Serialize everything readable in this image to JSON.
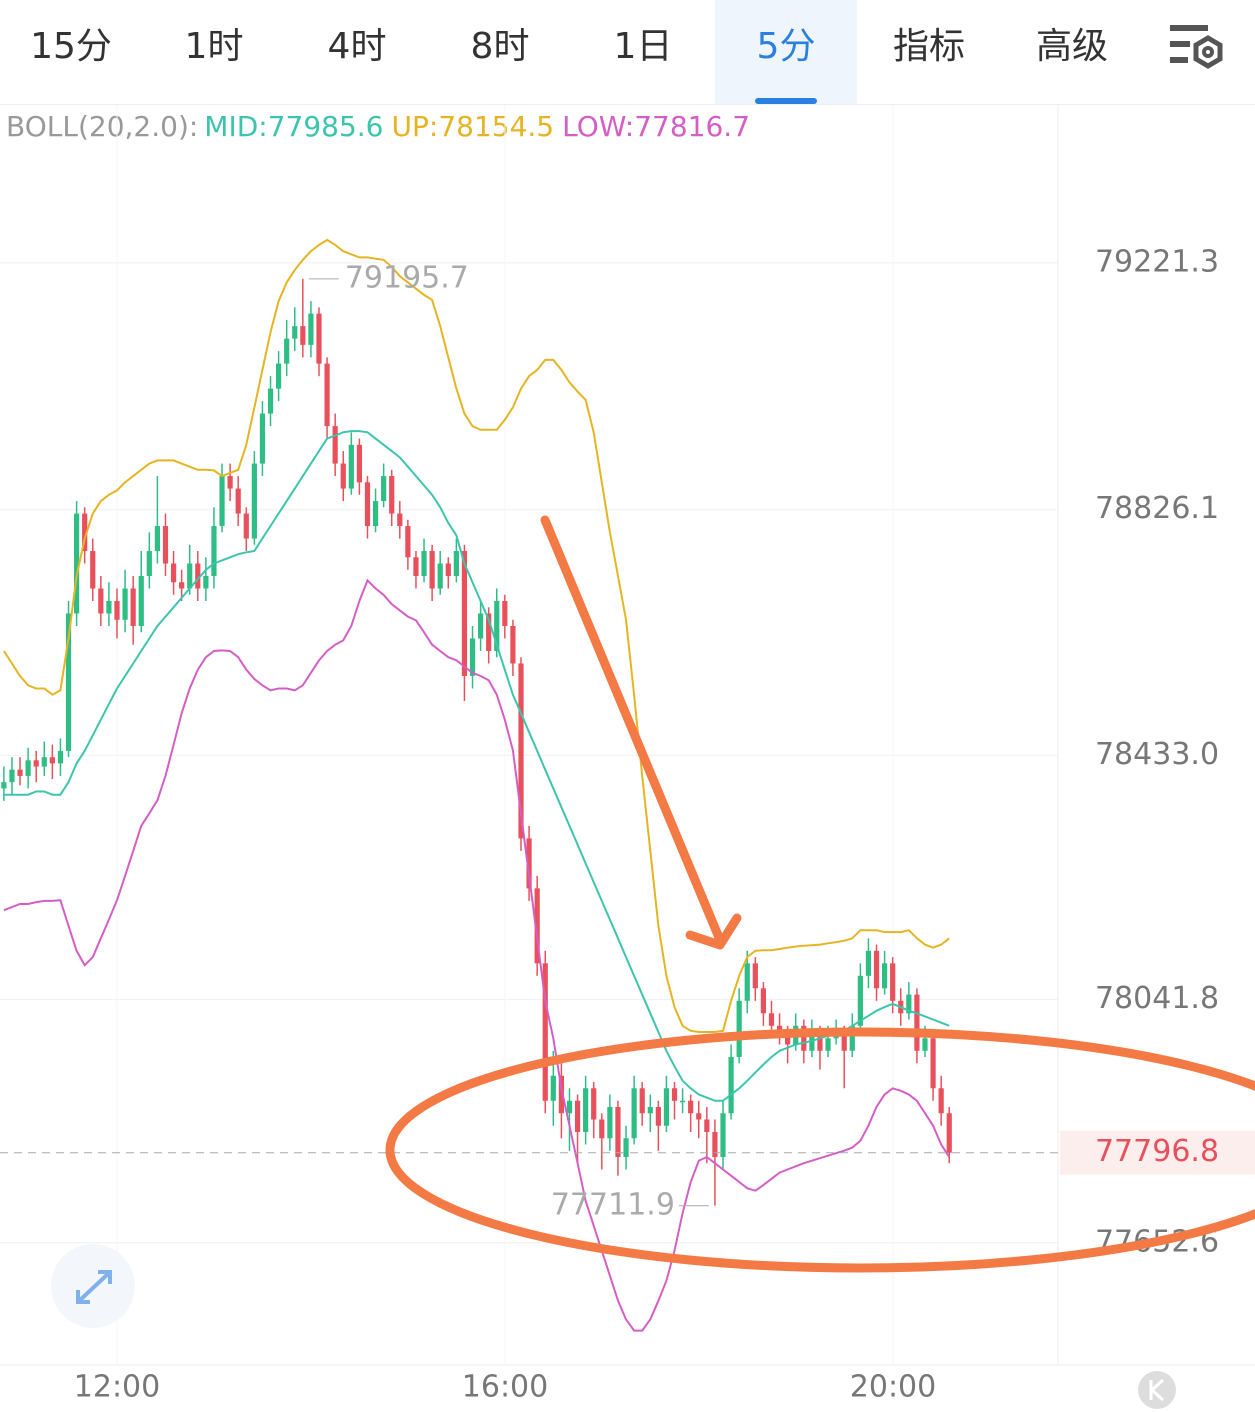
{
  "tabs": [
    "15分",
    "1时",
    "4时",
    "8时",
    "1日",
    "5分",
    "指标",
    "高级"
  ],
  "chart_data": {
    "type": "candlestick",
    "legend": [
      "BOLL(20,2.0):",
      "MID:77985.6",
      "UP:78154.5",
      "LOW:77816.7"
    ],
    "ylim": [
      77457,
      79474
    ],
    "yticks": [
      79221.3,
      78826.1,
      {
        "value": 78433,
        "label": "78433.0"
      },
      78041.8,
      77652.6
    ],
    "xtick_labels": [
      "12:00",
      "16:00",
      "20:00"
    ],
    "grid": true,
    "up_color": "#2ebd85",
    "down_color": "#e8505b",
    "high_label": 79195.7,
    "low_label": 77711.9,
    "last_price": 77796.8,
    "candles": [
      [
        78380,
        78415,
        78360,
        78390
      ],
      [
        78390,
        78430,
        78370,
        78410
      ],
      [
        78410,
        78430,
        78385,
        78400
      ],
      [
        78400,
        78445,
        78380,
        78425
      ],
      [
        78425,
        78440,
        78390,
        78415
      ],
      [
        78415,
        78455,
        78400,
        78430
      ],
      [
        78430,
        78450,
        78395,
        78420
      ],
      [
        78420,
        78460,
        78400,
        78440
      ],
      [
        78440,
        78680,
        78430,
        78660
      ],
      [
        78660,
        78840,
        78640,
        78820
      ],
      [
        78820,
        78830,
        78740,
        78760
      ],
      [
        78760,
        78780,
        78680,
        78700
      ],
      [
        78700,
        78720,
        78640,
        78660
      ],
      [
        78660,
        78710,
        78640,
        78680
      ],
      [
        78680,
        78700,
        78620,
        78650
      ],
      [
        78650,
        78730,
        78630,
        78700
      ],
      [
        78700,
        78720,
        78610,
        78640
      ],
      [
        78640,
        78760,
        78630,
        78720
      ],
      [
        78720,
        78790,
        78700,
        78760
      ],
      [
        78760,
        78880,
        78740,
        78800
      ],
      [
        78800,
        78820,
        78720,
        78740
      ],
      [
        78740,
        78760,
        78690,
        78710
      ],
      [
        78710,
        78730,
        78680,
        78700
      ],
      [
        78700,
        78770,
        78690,
        78740
      ],
      [
        78740,
        78760,
        78680,
        78700
      ],
      [
        78700,
        78750,
        78680,
        78720
      ],
      [
        78720,
        78830,
        78700,
        78800
      ],
      [
        78800,
        78900,
        78790,
        78880
      ],
      [
        78880,
        78900,
        78840,
        78860
      ],
      [
        78860,
        78880,
        78800,
        78820
      ],
      [
        78820,
        78830,
        78760,
        78780
      ],
      [
        78780,
        78920,
        78770,
        78900
      ],
      [
        78900,
        79000,
        78880,
        78980
      ],
      [
        78980,
        79040,
        78960,
        79020
      ],
      [
        79020,
        79080,
        79000,
        79060
      ],
      [
        79060,
        79130,
        79040,
        79100
      ],
      [
        79100,
        79150,
        79080,
        79120
      ],
      [
        79120,
        79195.7,
        79070,
        79090
      ],
      [
        79090,
        79160,
        79070,
        79140
      ],
      [
        79140,
        79150,
        79040,
        79060
      ],
      [
        79060,
        79070,
        78940,
        78960
      ],
      [
        78960,
        78980,
        78880,
        78900
      ],
      [
        78900,
        78920,
        78840,
        78860
      ],
      [
        78860,
        78950,
        78850,
        78930
      ],
      [
        78930,
        78940,
        78850,
        78870
      ],
      [
        78870,
        78880,
        78780,
        78800
      ],
      [
        78800,
        78860,
        78790,
        78840
      ],
      [
        78840,
        78900,
        78830,
        78880
      ],
      [
        78880,
        78890,
        78800,
        78820
      ],
      [
        78820,
        78840,
        78780,
        78800
      ],
      [
        78800,
        78810,
        78730,
        78750
      ],
      [
        78750,
        78760,
        78700,
        78720
      ],
      [
        78720,
        78780,
        78710,
        78760
      ],
      [
        78760,
        78770,
        78680,
        78700
      ],
      [
        78700,
        78760,
        78690,
        78740
      ],
      [
        78740,
        78750,
        78700,
        78720
      ],
      [
        78720,
        78780,
        78710,
        78760
      ],
      [
        78760,
        78770,
        78520,
        78560
      ],
      [
        78560,
        78640,
        78540,
        78620
      ],
      [
        78620,
        78680,
        78600,
        78660
      ],
      [
        78660,
        78670,
        78580,
        78600
      ],
      [
        78600,
        78700,
        78590,
        78680
      ],
      [
        78680,
        78690,
        78620,
        78640
      ],
      [
        78640,
        78650,
        78560,
        78580
      ],
      [
        78580,
        78590,
        78280,
        78300
      ],
      [
        78300,
        78320,
        78200,
        78220
      ],
      [
        78220,
        78240,
        78080,
        78100
      ],
      [
        78100,
        78120,
        77860,
        77880
      ],
      [
        77880,
        77960,
        77840,
        77920
      ],
      [
        77920,
        77940,
        77820,
        77860
      ],
      [
        77860,
        77900,
        77800,
        77880
      ],
      [
        77880,
        77890,
        77780,
        77830
      ],
      [
        77830,
        77920,
        77810,
        77900
      ],
      [
        77900,
        77910,
        77820,
        77850
      ],
      [
        77850,
        77860,
        77770,
        77820
      ],
      [
        77820,
        77890,
        77800,
        77870
      ],
      [
        77870,
        77880,
        77760,
        77790
      ],
      [
        77790,
        77840,
        77770,
        77820
      ],
      [
        77820,
        77920,
        77810,
        77900
      ],
      [
        77900,
        77910,
        77840,
        77860
      ],
      [
        77860,
        77890,
        77830,
        77870
      ],
      [
        77870,
        77880,
        77800,
        77840
      ],
      [
        77840,
        77920,
        77830,
        77900
      ],
      [
        77900,
        77910,
        77850,
        77880
      ],
      [
        77880,
        77900,
        77860,
        77880
      ],
      [
        77880,
        77890,
        77830,
        77860
      ],
      [
        77860,
        77880,
        77820,
        77850
      ],
      [
        77850,
        77870,
        77780,
        77830
      ],
      [
        77830,
        77850,
        77711.9,
        77790
      ],
      [
        77790,
        77880,
        77770,
        77860
      ],
      [
        77860,
        77970,
        77850,
        77950
      ],
      [
        77950,
        78060,
        77940,
        78040
      ],
      [
        78040,
        78120,
        78020,
        78100
      ],
      [
        78100,
        78110,
        78040,
        78060
      ],
      [
        78060,
        78070,
        78000,
        78020
      ],
      [
        78020,
        78040,
        77980,
        78000
      ],
      [
        78000,
        78020,
        77970,
        77990
      ],
      [
        77990,
        78000,
        77940,
        77970
      ],
      [
        77970,
        78020,
        77960,
        78000
      ],
      [
        78000,
        78010,
        77940,
        77960
      ],
      [
        77960,
        78010,
        77950,
        77990
      ],
      [
        77990,
        78000,
        77930,
        77960
      ],
      [
        77960,
        78000,
        77950,
        77980
      ],
      [
        77980,
        78010,
        77970,
        77990
      ],
      [
        77990,
        78000,
        77900,
        77960
      ],
      [
        77960,
        78020,
        77950,
        78000
      ],
      [
        78000,
        78100,
        77990,
        78080
      ],
      [
        78080,
        78140,
        78060,
        78120
      ],
      [
        78120,
        78130,
        78040,
        78060
      ],
      [
        78060,
        78120,
        78050,
        78100
      ],
      [
        78100,
        78110,
        78020,
        78040
      ],
      [
        78040,
        78060,
        78000,
        78020
      ],
      [
        78020,
        78070,
        78010,
        78050
      ],
      [
        78050,
        78060,
        77940,
        77960
      ],
      [
        77960,
        78000,
        77950,
        77980
      ],
      [
        77980,
        77990,
        77880,
        77900
      ],
      [
        77900,
        77920,
        77840,
        77860
      ],
      [
        77860,
        77870,
        77780,
        77796.8
      ]
    ],
    "series": [
      {
        "color": "#3cc4ad",
        "values": [
          78370,
          78370,
          78370,
          78370,
          78375,
          78375,
          78370,
          78370,
          78390,
          78420,
          78440,
          78465,
          78490,
          78515,
          78540,
          78560,
          78580,
          78600,
          78620,
          78640,
          78655,
          78670,
          78685,
          78700,
          78715,
          78730,
          78740,
          78745,
          78750,
          78755,
          78758,
          78760,
          78780,
          78800,
          78820,
          78840,
          78860,
          78880,
          78900,
          78920,
          78940,
          78945,
          78950,
          78952,
          78952,
          78950,
          78940,
          78930,
          78920,
          78910,
          78895,
          78880,
          78865,
          78850,
          78830,
          78805,
          78785,
          78740,
          78710,
          78680,
          78650,
          78610,
          78570,
          78530,
          78500,
          78470,
          78440,
          78410,
          78380,
          78350,
          78320,
          78290,
          78260,
          78230,
          78200,
          78170,
          78140,
          78110,
          78080,
          78050,
          78020,
          77990,
          77960,
          77935,
          77912,
          77900,
          77890,
          77885,
          77880,
          77880,
          77890,
          77900,
          77912,
          77925,
          77938,
          77950,
          77960,
          77965,
          77970,
          77973,
          77976,
          77980,
          77984,
          77988,
          77992,
          78000,
          78008,
          78016,
          78024,
          78030,
          78035,
          78030,
          78024,
          78020,
          78015,
          78010,
          78005,
          78000
        ]
      },
      {
        "color": "#e6b422",
        "values": [
          78600,
          78580,
          78560,
          78545,
          78540,
          78540,
          78530,
          78537,
          78620,
          78720,
          78780,
          78820,
          78840,
          78850,
          78857,
          78870,
          78880,
          78890,
          78900,
          78905,
          78905,
          78905,
          78900,
          78895,
          78890,
          78890,
          78889,
          78880,
          78885,
          78890,
          78930,
          78990,
          79050,
          79110,
          79160,
          79190,
          79210,
          79226,
          79240,
          79250,
          79258,
          79250,
          79240,
          79235,
          79230,
          79230,
          79228,
          79226,
          79215,
          79200,
          79190,
          79180,
          79170,
          79162,
          79120,
          79070,
          79020,
          78980,
          78960,
          78954,
          78954,
          78954,
          78970,
          78990,
          79020,
          79040,
          79050,
          79066,
          79066,
          79050,
          79030,
          79015,
          79002,
          78950,
          78870,
          78790,
          78720,
          78650,
          78530,
          78400,
          78280,
          78160,
          78080,
          78030,
          78000,
          77992,
          77990,
          77990,
          77990,
          77992,
          78040,
          78080,
          78110,
          78120,
          78121,
          78121,
          78123,
          78125,
          78127,
          78128,
          78129,
          78130,
          78132,
          78134,
          78136,
          78140,
          78153,
          78153,
          78153,
          78150,
          78150,
          78150,
          78153,
          78140,
          78130,
          78125,
          78130,
          78140
        ]
      },
      {
        "color": "#d45ec6",
        "values": [
          78185,
          78190,
          78195,
          78195,
          78198,
          78200,
          78200,
          78201,
          78160,
          78120,
          78097,
          78110,
          78140,
          78170,
          78201,
          78240,
          78280,
          78320,
          78340,
          78361,
          78400,
          78450,
          78500,
          78540,
          78570,
          78590,
          78600,
          78601,
          78600,
          78590,
          78570,
          78555,
          78545,
          78537,
          78540,
          78540,
          78537,
          78545,
          78565,
          78585,
          78600,
          78610,
          78617,
          78640,
          78680,
          78713,
          78700,
          78690,
          78675,
          78665,
          78655,
          78649,
          78630,
          78610,
          78600,
          78590,
          78585,
          78575,
          78565,
          78560,
          78553,
          78530,
          78490,
          78441,
          78340,
          78240,
          78140,
          78040,
          77980,
          77900,
          77840,
          77780,
          77720,
          77680,
          77640,
          77600,
          77560,
          77530,
          77512,
          77512,
          77530,
          77560,
          77592,
          77640,
          77700,
          77750,
          77784,
          77790,
          77780,
          77770,
          77760,
          77750,
          77740,
          77736,
          77745,
          77755,
          77765,
          77770,
          77775,
          77780,
          77784,
          77788,
          77792,
          77796,
          77800,
          77805,
          77816,
          77840,
          77870,
          77890,
          77900,
          77896,
          77890,
          77880,
          77860,
          77840,
          77810,
          77790
        ]
      }
    ]
  }
}
